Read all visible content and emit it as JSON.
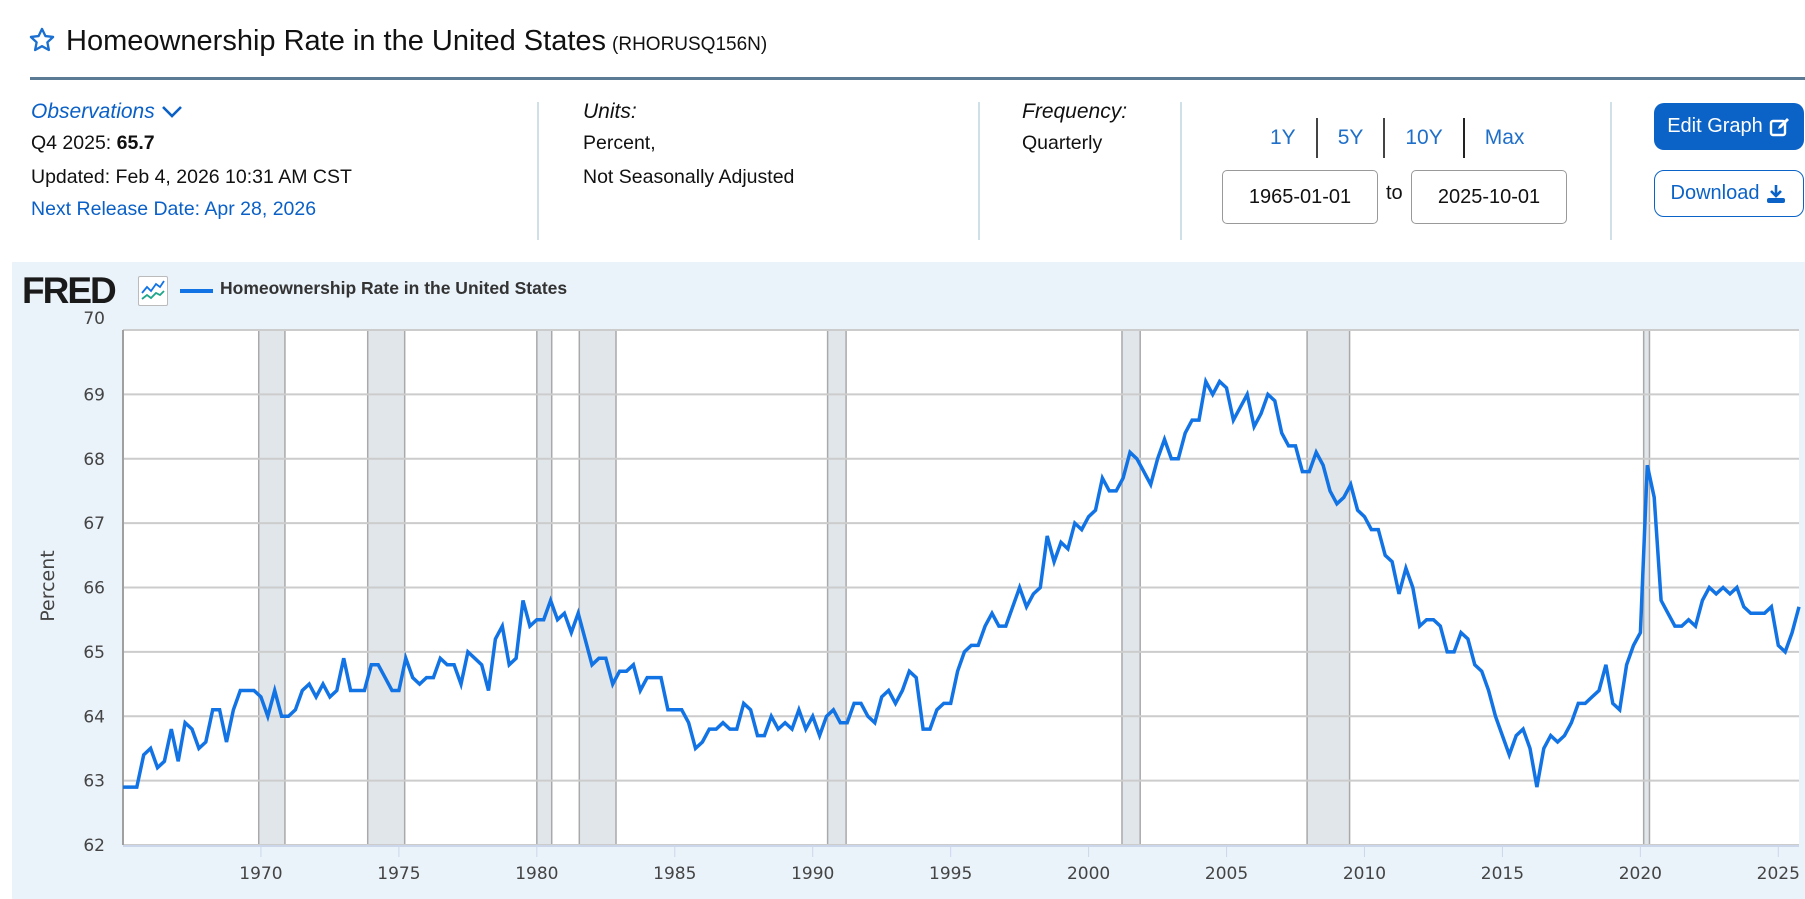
{
  "header": {
    "title": "Homeownership Rate in the United States",
    "series_id": "(RHORUSQ156N)",
    "star_icon": "star-outline-icon"
  },
  "observations": {
    "label": "Observations",
    "period": "Q4 2025:",
    "value": "65.7",
    "updated": "Updated: Feb 4, 2026 10:31 AM CST",
    "next_release": "Next Release Date: Apr 28, 2026"
  },
  "units": {
    "label": "Units:",
    "line1": "Percent,",
    "line2": "Not Seasonally Adjusted"
  },
  "frequency": {
    "label": "Frequency:",
    "value": "Quarterly"
  },
  "range": {
    "buttons": [
      "1Y",
      "5Y",
      "10Y",
      "Max"
    ],
    "start": "1965-01-01",
    "to_label": "to",
    "end": "2025-10-01"
  },
  "actions": {
    "edit_label": "Edit Graph",
    "download_label": "Download"
  },
  "colors": {
    "accent": "#0b63c7",
    "series": "#1273e5",
    "recession": "#e1e6eb",
    "panel": "#eaf2fa"
  },
  "chart_data": {
    "type": "line",
    "title": "Homeownership Rate in the United States",
    "logo": "FRED",
    "legend": [
      {
        "name": "Homeownership Rate in the United States",
        "color": "#1273e5"
      }
    ],
    "legend_position": "top-left",
    "xlabel": "",
    "ylabel": "Percent",
    "ylim": [
      62,
      70
    ],
    "yticks": [
      62,
      63,
      64,
      65,
      66,
      67,
      68,
      69,
      70
    ],
    "xlim": [
      1965.0,
      2025.75
    ],
    "xticks": [
      1970,
      1975,
      1980,
      1985,
      1990,
      1995,
      2000,
      2005,
      2010,
      2015,
      2020,
      2025
    ],
    "grid": true,
    "recessions": [
      [
        1969.92,
        1970.87
      ],
      [
        1973.87,
        1975.21
      ],
      [
        1980.0,
        1980.54
      ],
      [
        1981.54,
        1982.87
      ],
      [
        1990.54,
        1991.21
      ],
      [
        2001.21,
        2001.87
      ],
      [
        2007.92,
        2009.46
      ],
      [
        2020.12,
        2020.33
      ]
    ],
    "start_year": 1965.0,
    "step": 0.25,
    "series": [
      {
        "name": "Homeownership Rate in the United States",
        "values": [
          62.9,
          62.9,
          62.9,
          63.4,
          63.5,
          63.2,
          63.3,
          63.8,
          63.3,
          63.9,
          63.8,
          63.5,
          63.6,
          64.1,
          64.1,
          63.6,
          64.1,
          64.4,
          64.4,
          64.4,
          64.3,
          64.0,
          64.4,
          64.0,
          64.0,
          64.1,
          64.4,
          64.5,
          64.3,
          64.5,
          64.3,
          64.4,
          64.9,
          64.4,
          64.4,
          64.4,
          64.8,
          64.8,
          64.6,
          64.4,
          64.4,
          64.9,
          64.6,
          64.5,
          64.6,
          64.6,
          64.9,
          64.8,
          64.8,
          64.5,
          65.0,
          64.9,
          64.8,
          64.4,
          65.2,
          65.4,
          64.8,
          64.9,
          65.8,
          65.4,
          65.5,
          65.5,
          65.8,
          65.5,
          65.6,
          65.3,
          65.6,
          65.2,
          64.8,
          64.9,
          64.9,
          64.5,
          64.7,
          64.7,
          64.8,
          64.4,
          64.6,
          64.6,
          64.6,
          64.1,
          64.1,
          64.1,
          63.9,
          63.5,
          63.6,
          63.8,
          63.8,
          63.9,
          63.8,
          63.8,
          64.2,
          64.1,
          63.7,
          63.7,
          64.0,
          63.8,
          63.9,
          63.8,
          64.1,
          63.8,
          64.0,
          63.7,
          64.0,
          64.1,
          63.9,
          63.9,
          64.2,
          64.2,
          64.0,
          63.9,
          64.3,
          64.4,
          64.2,
          64.4,
          64.7,
          64.6,
          63.8,
          63.8,
          64.1,
          64.2,
          64.2,
          64.7,
          65.0,
          65.1,
          65.1,
          65.4,
          65.6,
          65.4,
          65.4,
          65.7,
          66.0,
          65.7,
          65.9,
          66.0,
          66.8,
          66.4,
          66.7,
          66.6,
          67.0,
          66.9,
          67.1,
          67.2,
          67.7,
          67.5,
          67.5,
          67.7,
          68.1,
          68.0,
          67.8,
          67.6,
          68.0,
          68.3,
          68.0,
          68.0,
          68.4,
          68.6,
          68.6,
          69.2,
          69.0,
          69.2,
          69.1,
          68.6,
          68.8,
          69.0,
          68.5,
          68.7,
          69.0,
          68.9,
          68.4,
          68.2,
          68.2,
          67.8,
          67.8,
          68.1,
          67.9,
          67.5,
          67.3,
          67.4,
          67.6,
          67.2,
          67.1,
          66.9,
          66.9,
          66.5,
          66.4,
          65.9,
          66.3,
          66.0,
          65.4,
          65.5,
          65.5,
          65.4,
          65.0,
          65.0,
          65.3,
          65.2,
          64.8,
          64.7,
          64.4,
          64.0,
          63.7,
          63.4,
          63.7,
          63.8,
          63.5,
          62.9,
          63.5,
          63.7,
          63.6,
          63.7,
          63.9,
          64.2,
          64.2,
          64.3,
          64.4,
          64.8,
          64.2,
          64.1,
          64.8,
          65.1,
          65.3,
          67.9,
          67.4,
          65.8,
          65.6,
          65.4,
          65.4,
          65.5,
          65.4,
          65.8,
          66.0,
          65.9,
          66.0,
          65.9,
          66.0,
          65.7,
          65.6,
          65.6,
          65.6,
          65.7,
          65.1,
          65.0,
          65.3,
          65.7
        ]
      }
    ]
  }
}
